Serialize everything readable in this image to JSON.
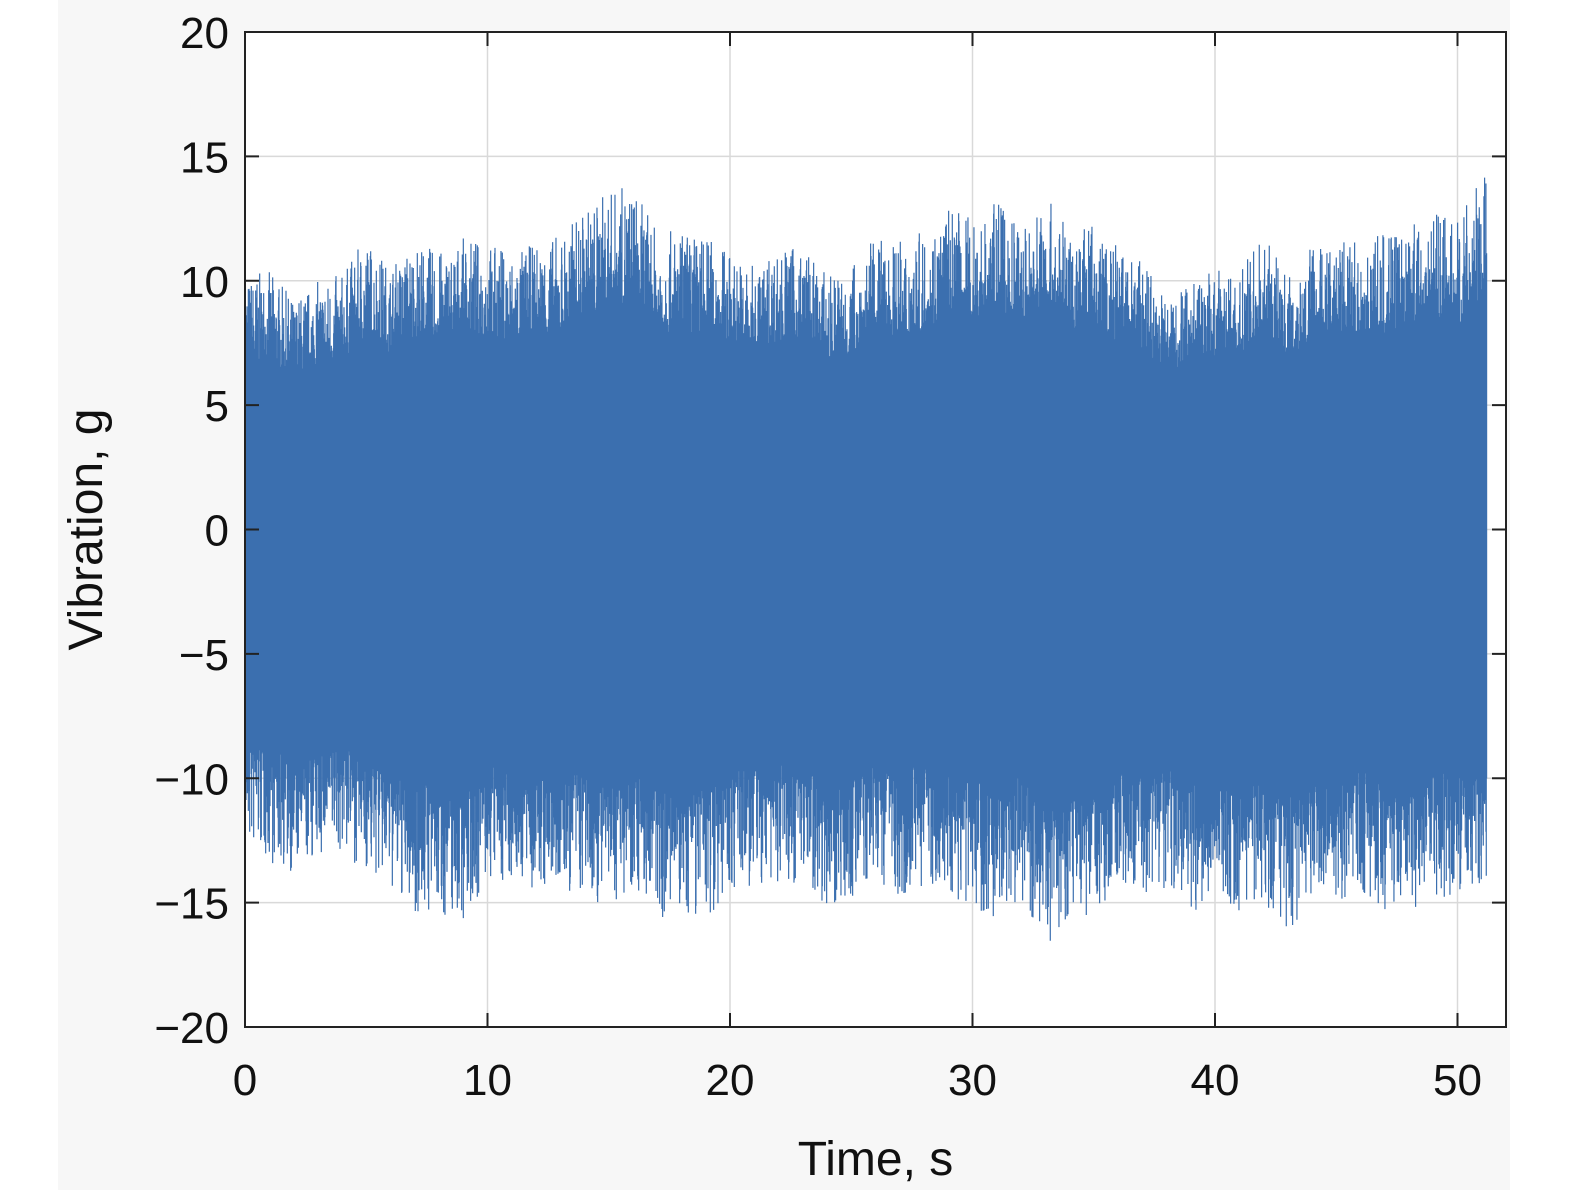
{
  "chart_data": {
    "type": "line",
    "title": "",
    "xlabel": "Time, s",
    "ylabel": "Vibration, g",
    "xlim": [
      0,
      52
    ],
    "ylim": [
      -20,
      20
    ],
    "xticks": [
      0,
      10,
      20,
      30,
      40,
      50
    ],
    "xtick_labels": [
      "0",
      "10",
      "20",
      "30",
      "40",
      "50"
    ],
    "yticks": [
      20,
      15,
      10,
      5,
      0,
      -5,
      -10,
      -15,
      -20
    ],
    "ytick_labels": [
      "20",
      "15",
      "10",
      "5",
      "0",
      "−5",
      "−10",
      "−15",
      "−20"
    ],
    "grid": true,
    "legend": "none",
    "colors": {
      "series": "#3b6faf",
      "grid": "#d9d9d9",
      "axes": "#222222",
      "plot_bg": "#ffffff"
    },
    "series": [
      {
        "x_start": 0,
        "x_end": 51.2,
        "envelope_x": [
          0,
          1,
          2,
          3,
          4,
          5,
          6,
          7,
          8,
          9,
          10,
          11,
          12,
          13,
          14,
          15,
          16,
          17,
          18,
          19,
          20,
          21,
          22,
          23,
          24,
          25,
          26,
          27,
          28,
          29,
          30,
          31,
          32,
          33,
          34,
          35,
          36,
          37,
          38,
          39,
          40,
          41,
          42,
          43,
          44,
          45,
          46,
          47,
          48,
          49,
          50,
          51
        ],
        "upper": [
          10.2,
          10.4,
          9.3,
          10.0,
          10.3,
          11.8,
          10.6,
          11.6,
          11.2,
          11.7,
          11.6,
          11.2,
          11.5,
          11.9,
          12.9,
          13.7,
          13.8,
          12.0,
          12.0,
          11.9,
          11.2,
          10.6,
          11.4,
          11.4,
          10.2,
          10.7,
          11.7,
          11.6,
          12.0,
          13.0,
          12.6,
          13.2,
          12.2,
          13.5,
          12.0,
          12.3,
          11.4,
          10.8,
          9.4,
          10.3,
          10.4,
          10.4,
          11.8,
          10.4,
          11.6,
          11.6,
          11.6,
          11.9,
          12.5,
          12.8,
          12.4,
          14.2
        ],
        "lower": [
          -12.9,
          -13.4,
          -13.9,
          -13.3,
          -13.0,
          -13.8,
          -14.6,
          -15.5,
          -15.6,
          -15.7,
          -14.4,
          -14.1,
          -14.7,
          -14.7,
          -14.9,
          -15.2,
          -14.3,
          -15.7,
          -15.6,
          -15.7,
          -14.6,
          -14.6,
          -14.4,
          -14.1,
          -15.2,
          -15.0,
          -14.1,
          -14.7,
          -14.3,
          -14.8,
          -15.2,
          -15.6,
          -15.0,
          -17.1,
          -15.5,
          -15.8,
          -14.3,
          -14.7,
          -14.6,
          -15.2,
          -15.6,
          -15.4,
          -15.1,
          -16.3,
          -15.1,
          -15.3,
          -14.5,
          -15.3,
          -15.6,
          -14.8,
          -14.9,
          -14.2
        ]
      }
    ]
  }
}
